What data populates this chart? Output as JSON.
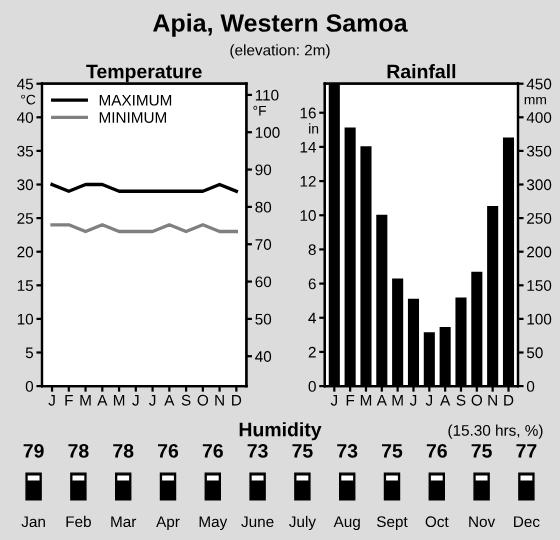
{
  "chart_data": [
    {
      "type": "other",
      "title": "Apia, Western Samoa",
      "subtitle": "(elevation: 2m)"
    },
    {
      "type": "line",
      "title": "Temperature",
      "ylabel": "°C",
      "y2label": "°F",
      "categories": [
        "J",
        "F",
        "M",
        "A",
        "M",
        "J",
        "J",
        "A",
        "S",
        "O",
        "N",
        "D"
      ],
      "series": [
        {
          "name": "MAXIMUM",
          "color": "#000000",
          "values": [
            30,
            29,
            30,
            30,
            29,
            29,
            29,
            29,
            29,
            29,
            30,
            29
          ]
        },
        {
          "name": "MINIMUM",
          "color": "#808080",
          "values": [
            24,
            24,
            23,
            24,
            23,
            23,
            23,
            24,
            23,
            24,
            23,
            23
          ]
        }
      ],
      "ylim": [
        0,
        45
      ],
      "yticks": [
        0,
        5,
        10,
        15,
        20,
        25,
        30,
        35,
        40,
        45
      ],
      "y2lim": [
        32,
        113
      ],
      "y2ticks": [
        40,
        50,
        60,
        70,
        80,
        90,
        100,
        110
      ],
      "legend": "top left",
      "grid": false
    },
    {
      "type": "bar",
      "title": "Rainfall",
      "ylabel": "in",
      "y2label": "mm",
      "categories": [
        "J",
        "F",
        "M",
        "A",
        "M",
        "J",
        "J",
        "A",
        "S",
        "O",
        "N",
        "D"
      ],
      "series": [
        {
          "color": "#000000",
          "axis": "y2",
          "values": [
            450,
            385,
            357,
            255,
            160,
            130,
            80,
            88,
            132,
            170,
            268,
            370
          ]
        }
      ],
      "ylim": [
        0,
        17.7
      ],
      "yticks": [
        0,
        2,
        4,
        6,
        8,
        10,
        12,
        14,
        16
      ],
      "y2lim": [
        0,
        450
      ],
      "y2ticks": [
        0,
        50,
        100,
        150,
        200,
        250,
        300,
        350,
        400,
        450
      ],
      "grid": false
    },
    {
      "type": "other",
      "title": "Humidity",
      "subtitle": "(15.30 hrs, %)",
      "categories": [
        "Jan",
        "Feb",
        "Mar",
        "Apr",
        "May",
        "June",
        "July",
        "Aug",
        "Sept",
        "Oct",
        "Nov",
        "Dec"
      ],
      "values": [
        79,
        78,
        78,
        76,
        76,
        73,
        75,
        73,
        75,
        76,
        75,
        77
      ],
      "data_labels": true
    }
  ]
}
